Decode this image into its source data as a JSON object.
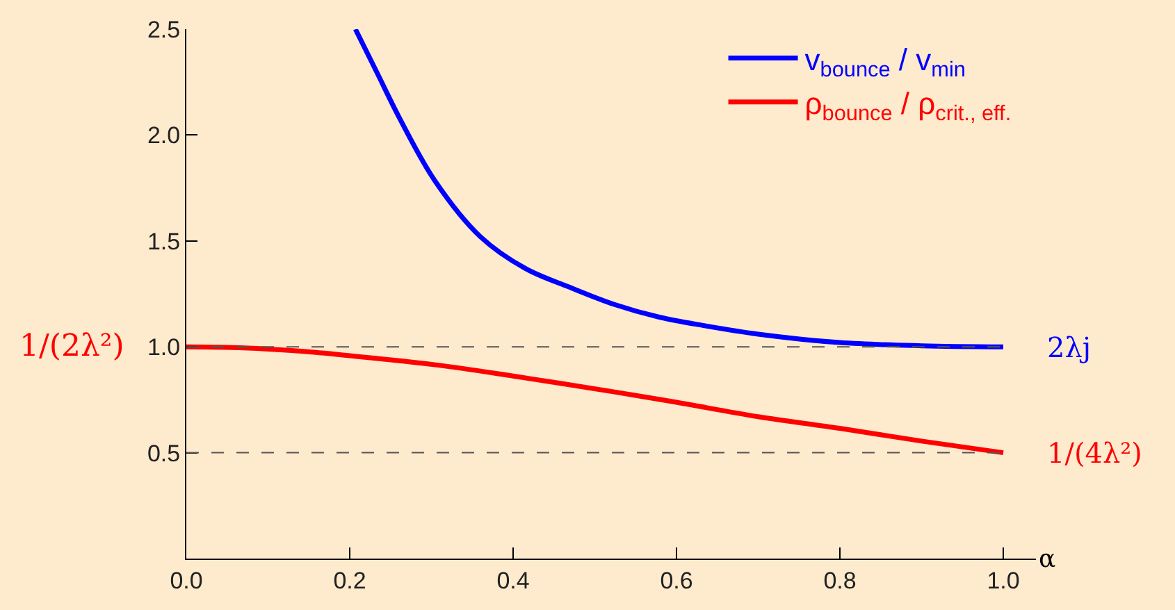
{
  "chart_data": {
    "type": "line",
    "xlabel": "α",
    "xlim": [
      0,
      1.04
    ],
    "ylim": [
      0,
      2.5
    ],
    "xticks": [
      {
        "value": 0,
        "label": "0.0"
      },
      0.2,
      0.4,
      0.6,
      0.8,
      {
        "value": 1,
        "label": "1.0"
      }
    ],
    "yticks": [
      0.5,
      {
        "value": 1,
        "label": "1.0"
      },
      1.5,
      {
        "value": 2,
        "label": "2.0"
      },
      2.5
    ],
    "grid": false,
    "legend": "top right",
    "series": [
      {
        "name": "v$_{bounce}$ / v$_{min}$",
        "color": "#0000ff",
        "x": [
          0.207,
          0.234,
          0.261,
          0.305,
          0.36,
          0.415,
          0.47,
          0.524,
          0.579,
          0.634,
          0.7,
          0.8,
          0.9,
          1.0
        ],
        "values": [
          2.5,
          2.29,
          2.08,
          1.78,
          1.52,
          1.37,
          1.28,
          1.2,
          1.14,
          1.1,
          1.06,
          1.02,
          1.005,
          1.0
        ]
      },
      {
        "name": "ρ$_{bounce}$ / ρ$_{crit., eff.}$",
        "color": "#ff0000",
        "x": [
          0,
          0.07,
          0.141,
          0.2,
          0.305,
          0.4,
          0.524,
          0.6,
          0.7,
          0.8,
          0.9,
          1.0
        ],
        "values": [
          1.0,
          0.995,
          0.979,
          0.958,
          0.915,
          0.862,
          0.787,
          0.738,
          0.67,
          0.615,
          0.555,
          0.5
        ]
      }
    ],
    "ref_lines": [
      {
        "axis": "y",
        "value": 1,
        "label": "2λj",
        "color": "#555555",
        "line_style": "dashed"
      },
      {
        "axis": "y",
        "value": 0.5,
        "label": "1/(4λ²)",
        "color": "#555555",
        "line_style": "dashed"
      }
    ],
    "annotations": [
      "1/(2λ²)"
    ]
  }
}
